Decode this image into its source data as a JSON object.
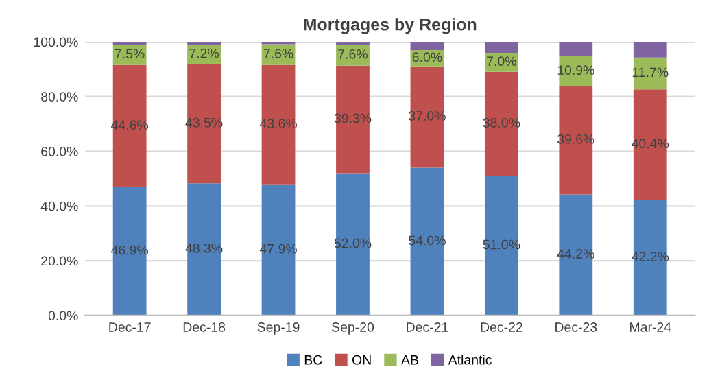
{
  "chart_data": {
    "type": "bar",
    "title": "Mortgages by Region",
    "stacked": true,
    "categories": [
      "Dec-17",
      "Dec-18",
      "Sep-19",
      "Sep-20",
      "Dec-21",
      "Dec-22",
      "Dec-23",
      "Mar-24"
    ],
    "series": [
      {
        "name": "BC",
        "color": "#4f81bd",
        "values": [
          46.9,
          48.3,
          47.9,
          52.0,
          54.0,
          51.0,
          44.2,
          42.2
        ],
        "value_labels": [
          "46.9%",
          "48.3%",
          "47.9%",
          "52.0%",
          "54.0%",
          "51.0%",
          "44.2%",
          "42.2%"
        ]
      },
      {
        "name": "ON",
        "color": "#c0504d",
        "values": [
          44.6,
          43.5,
          43.6,
          39.3,
          37.0,
          38.0,
          39.6,
          40.4
        ],
        "value_labels": [
          "44.6%",
          "43.5%",
          "43.6%",
          "39.3%",
          "37.0%",
          "38.0%",
          "39.6%",
          "40.4%"
        ]
      },
      {
        "name": "AB",
        "color": "#9bbb59",
        "values": [
          7.5,
          7.2,
          7.6,
          7.6,
          6.0,
          7.0,
          10.9,
          11.7
        ],
        "value_labels": [
          "7.5%",
          "7.2%",
          "7.6%",
          "7.6%",
          "6.0%",
          "7.0%",
          "10.9%",
          "11.7%"
        ]
      },
      {
        "name": "Atlantic",
        "color": "#8064a2",
        "values": [
          1.0,
          1.0,
          0.9,
          1.1,
          3.0,
          4.0,
          5.3,
          5.7
        ]
      }
    ],
    "ylim": [
      0,
      100
    ],
    "yticks": [
      {
        "value": 0,
        "label": "0.0%"
      },
      {
        "value": 20,
        "label": "20.0%"
      },
      {
        "value": 40,
        "label": "40.0%"
      },
      {
        "value": 60,
        "label": "60.0%"
      },
      {
        "value": 80,
        "label": "80.0%"
      },
      {
        "value": 100,
        "label": "100.0%"
      }
    ],
    "grid": "y",
    "legend": "bottom"
  }
}
